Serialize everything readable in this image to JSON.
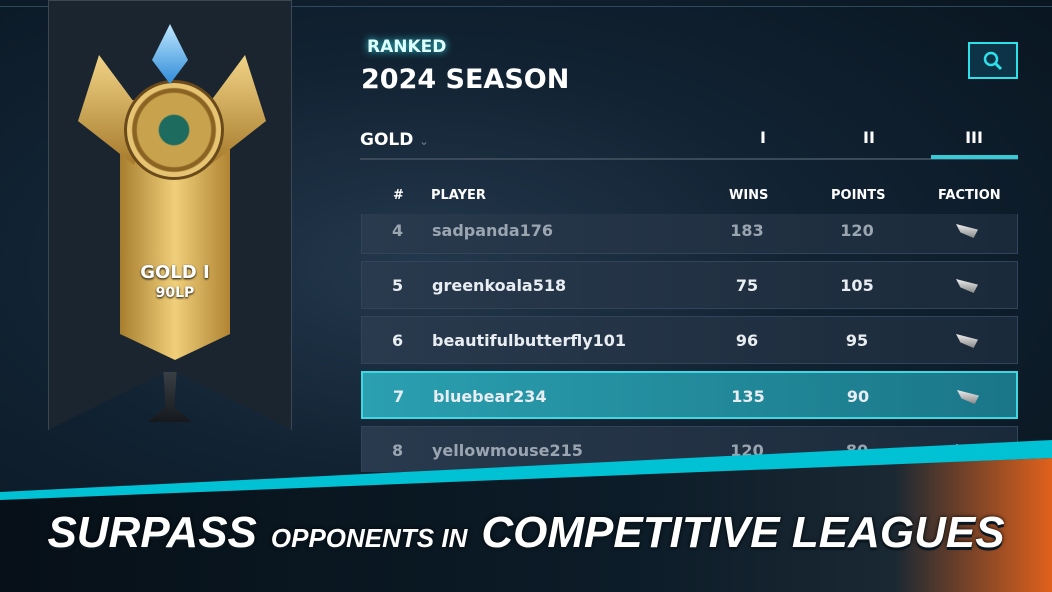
{
  "badge": {
    "tier_label": "GOLD I",
    "lp": "90LP"
  },
  "header": {
    "eyebrow": "RANKED",
    "title": "2024 SEASON"
  },
  "search_icon": "search-icon",
  "tier_select": {
    "value": "GOLD"
  },
  "division_tabs": [
    {
      "label": "I"
    },
    {
      "label": "II"
    },
    {
      "label": "III",
      "active": true
    }
  ],
  "table": {
    "columns": [
      "#",
      "PLAYER",
      "WINS",
      "POINTS",
      "FACTION"
    ],
    "rows": [
      {
        "rank": "4",
        "player": "sadpanda176",
        "wins": "183",
        "points": "120",
        "faction": "wing-icon"
      },
      {
        "rank": "5",
        "player": "greenkoala518",
        "wins": "75",
        "points": "105",
        "faction": "wing-icon"
      },
      {
        "rank": "6",
        "player": "beautifulbutterfly101",
        "wins": "96",
        "points": "95",
        "faction": "wing-icon"
      },
      {
        "rank": "7",
        "player": "bluebear234",
        "wins": "135",
        "points": "90",
        "faction": "wing-icon",
        "highlighted": true
      },
      {
        "rank": "8",
        "player": "yellowmouse215",
        "wins": "120",
        "points": "80",
        "faction": "wing-icon"
      }
    ]
  },
  "slogan": {
    "part1": "SURPASS",
    "part2": "OPPONENTS IN",
    "part3": "COMPETITIVE LEAGUES"
  },
  "colors": {
    "accent": "#36c9d6",
    "highlight_row": "#2aa0b0",
    "gold": "#e6c471"
  }
}
